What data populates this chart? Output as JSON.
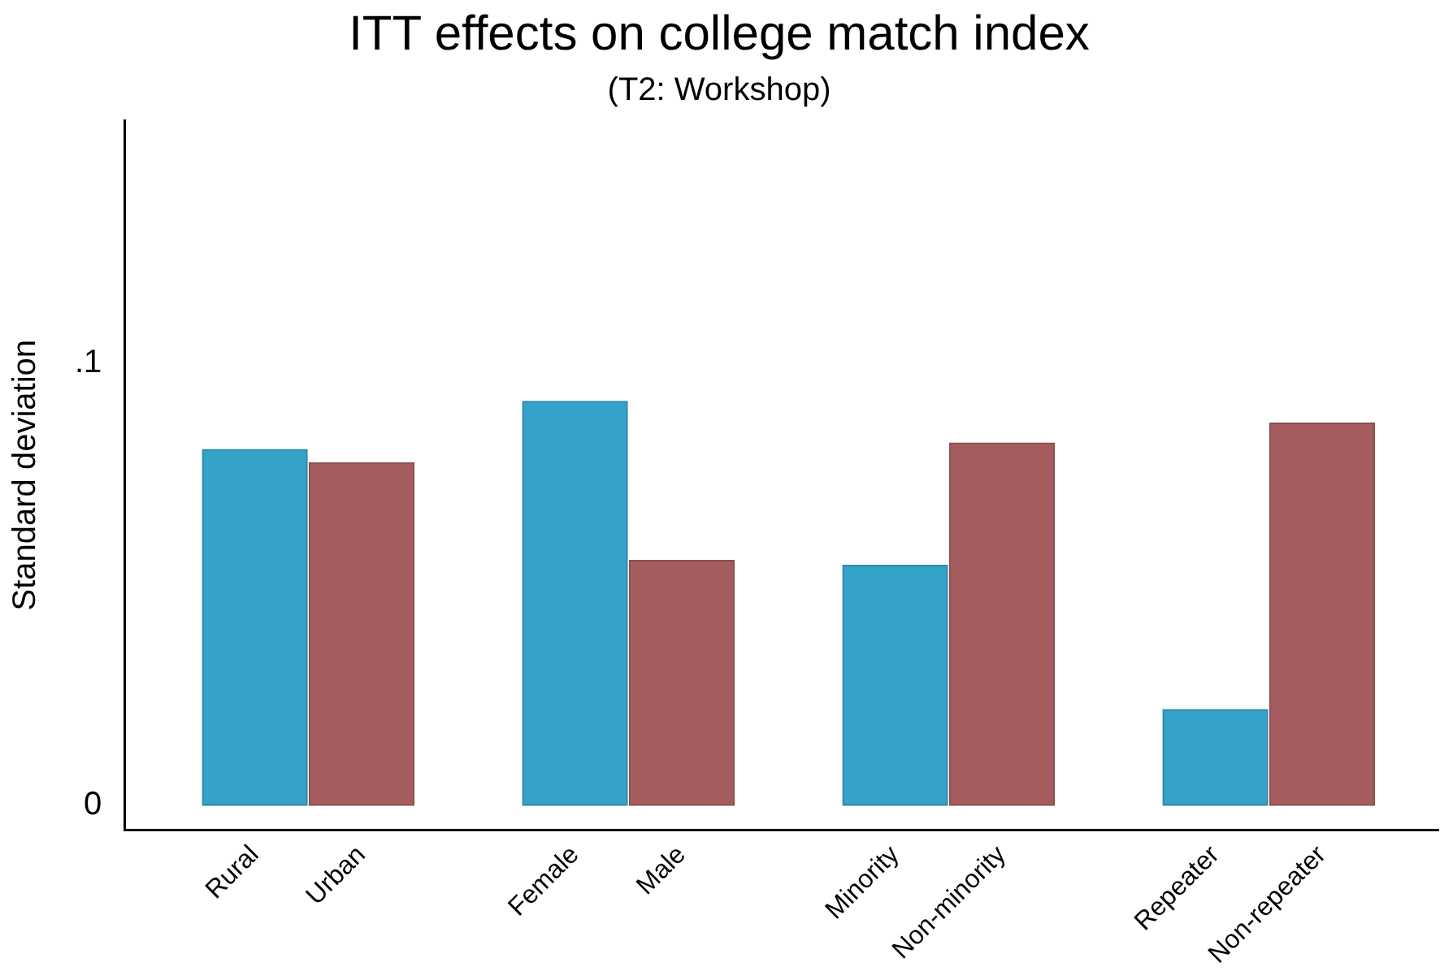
{
  "chart_data": {
    "type": "bar",
    "title": "ITT effects on college match index",
    "subtitle": "(T2: Workshop)",
    "ylabel": "Standard deviation",
    "categories": [
      "Rural",
      "Urban",
      "Female",
      "Male",
      "Minority",
      "Non-minority",
      "Repeater",
      "Non-repeater"
    ],
    "values": [
      0.0805,
      0.0775,
      0.0914,
      0.0554,
      0.0543,
      0.082,
      0.0217,
      0.0865
    ],
    "colors": [
      "#35a2c9",
      "#a55c5e",
      "#35a2c9",
      "#a55c5e",
      "#35a2c9",
      "#a55c5e",
      "#35a2c9",
      "#a55c5e"
    ],
    "ylim": [
      -0.0056,
      0.155
    ],
    "yticks": [
      {
        "value": 0,
        "label": "0"
      },
      {
        "value": 0.1,
        "label": ".1"
      }
    ],
    "grid": false,
    "legend": false
  }
}
